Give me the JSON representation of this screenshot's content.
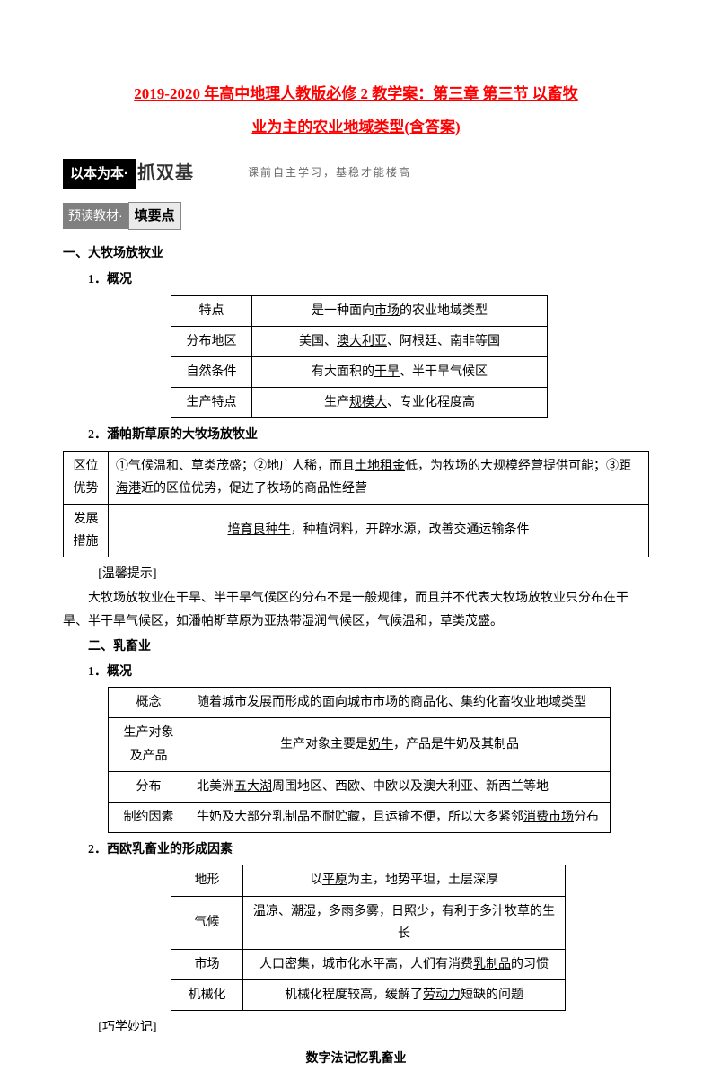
{
  "title": {
    "line1": "2019-2020 年高中地理人教版必修 2 教学案：第三章 第三节 以畜牧",
    "line2": "业为主的农业地域类型(含答案)"
  },
  "banner": {
    "black": "以本为本·",
    "outline": "抓双基",
    "note": "课前自主学习，基稳才能楼高"
  },
  "subbanner": {
    "grey": "预读教材·",
    "outline": "填要点"
  },
  "section1": {
    "heading": "一、大牧场放牧业",
    "sub1": "1．概况",
    "table1": {
      "rows": [
        {
          "label": "特点",
          "value_pre": "是一种面向",
          "value_ul": "市场",
          "value_post": "的农业地域类型"
        },
        {
          "label": "分布地区",
          "value_pre": "美国、",
          "value_ul": "澳大利亚",
          "value_post": "、阿根廷、南非等国"
        },
        {
          "label": "自然条件",
          "value_pre": "有大面积的",
          "value_ul": "干旱",
          "value_post": "、半干旱气候区"
        },
        {
          "label": "生产特点",
          "value_pre": "生产",
          "value_ul": "规模大",
          "value_post": "、专业化程度高"
        }
      ]
    },
    "sub2": "2．潘帕斯草原的大牧场放牧业",
    "table2": {
      "row1": {
        "label_a": "区位",
        "label_b": "优势",
        "text_a": "①气候温和、草类茂盛；②地广人稀，而且",
        "ul_a": "土地租金",
        "text_b": "低，为牧场的大规模经营提供可能；③距",
        "ul_b": "海港",
        "text_c": "近的区位优势，促进了牧场的商品性经营"
      },
      "row2": {
        "label_a": "发展",
        "label_b": "措施",
        "ul": "培育良种牛",
        "text": "，种植饲料，开辟水源，改善交通运输条件"
      }
    },
    "tip_label": "[温馨提示]",
    "tip_text": "大牧场放牧业在干旱、半干旱气候区的分布不是一般规律，而且并不代表大牧场放牧业只分布在干旱、半干旱气候区，如潘帕斯草原为亚热带湿润气候区，气候温和，草类茂盛。"
  },
  "section2": {
    "heading": "二、乳畜业",
    "sub1": "1．概况",
    "table3": {
      "r1": {
        "label": "概念",
        "pre": "随着城市发展而形成的面向城市市场的",
        "ul": "商品化",
        "post": "、集约化畜牧业地域类型"
      },
      "r2": {
        "label_a": "生产对象",
        "label_b": "及产品",
        "pre": "生产对象主要是",
        "ul": "奶牛",
        "post": "，产品是牛奶及其制品"
      },
      "r3": {
        "label": "分布",
        "pre": "北美洲",
        "ul": "五大湖",
        "post": "周围地区、西欧、中欧以及澳大利亚、新西兰等地"
      },
      "r4": {
        "label": "制约因素",
        "pre": "牛奶及大部分乳制品不耐贮藏，且运输不便，所以大多紧邻",
        "ul": "消费市场",
        "post": "分布"
      }
    },
    "sub2": "2．西欧乳畜业的形成因素",
    "table4": {
      "r1": {
        "label": "地形",
        "pre": "以",
        "ul": "平原",
        "post": "为主，地势平坦，土层深厚"
      },
      "r2": {
        "label": "气候",
        "text": "温凉、潮湿，多雨多雾，日照少，有利于多汁牧草的生长"
      },
      "r3": {
        "label": "市场",
        "pre": "人口密集，城市化水平高，人们有消费",
        "ul": "乳制品",
        "post": "的习惯"
      },
      "r4": {
        "label": "机械化",
        "pre": "机械化程度较高，缓解了",
        "ul": "劳动力",
        "post": "短缺的问题"
      }
    },
    "memo_label": "[巧学妙记]",
    "memo_title": "数字法记忆乳畜业"
  }
}
